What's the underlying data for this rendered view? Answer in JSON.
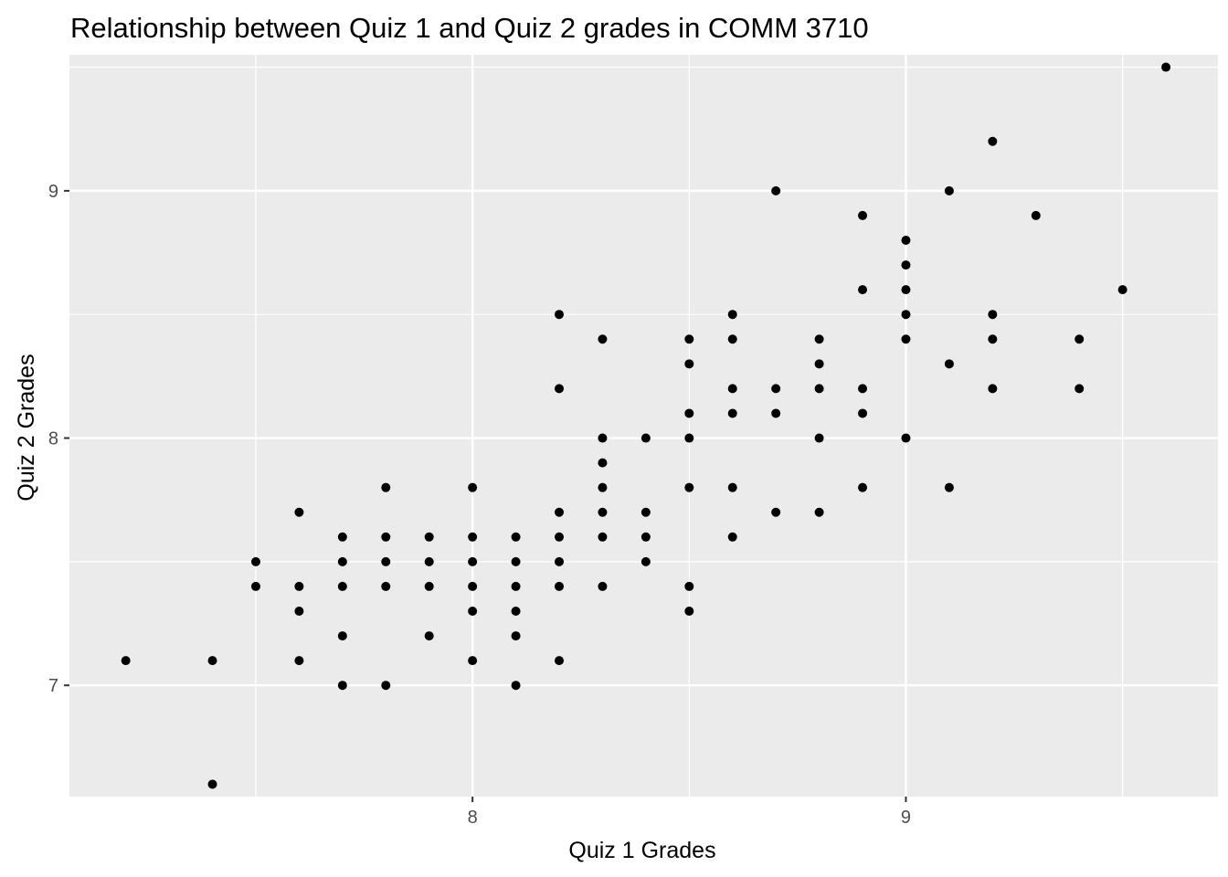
{
  "chart_data": {
    "type": "scatter",
    "title": "Relationship between Quiz 1 and Quiz 2 grades in COMM 3710",
    "xlabel": "Quiz 1 Grades",
    "ylabel": "Quiz 2 Grades",
    "xlim": [
      7.07,
      9.72
    ],
    "ylim": [
      6.55,
      9.55
    ],
    "x_ticks": [
      8,
      9
    ],
    "y_ticks": [
      7,
      8,
      9
    ],
    "x_tick_labels": [
      "8",
      "9"
    ],
    "y_tick_labels": [
      "7",
      "8",
      "9"
    ],
    "grid": true,
    "legend": "none",
    "colors": {
      "panel_background": "#ebebeb",
      "grid": "#ffffff",
      "point": "#000000",
      "tick": "#333333",
      "tick_label": "#4d4d4d"
    },
    "points": [
      [
        7.2,
        7.1
      ],
      [
        7.4,
        7.1
      ],
      [
        7.4,
        6.6
      ],
      [
        7.5,
        7.5
      ],
      [
        7.5,
        7.4
      ],
      [
        7.6,
        7.7
      ],
      [
        7.6,
        7.4
      ],
      [
        7.6,
        7.3
      ],
      [
        7.6,
        7.1
      ],
      [
        7.7,
        7.6
      ],
      [
        7.7,
        7.5
      ],
      [
        7.7,
        7.4
      ],
      [
        7.7,
        7.2
      ],
      [
        7.7,
        7.0
      ],
      [
        7.8,
        7.8
      ],
      [
        7.8,
        7.6
      ],
      [
        7.8,
        7.5
      ],
      [
        7.8,
        7.4
      ],
      [
        7.8,
        7.0
      ],
      [
        7.9,
        7.6
      ],
      [
        7.9,
        7.5
      ],
      [
        7.9,
        7.4
      ],
      [
        7.9,
        7.2
      ],
      [
        8.0,
        7.8
      ],
      [
        8.0,
        7.6
      ],
      [
        8.0,
        7.5
      ],
      [
        8.0,
        7.4
      ],
      [
        8.0,
        7.3
      ],
      [
        8.0,
        7.1
      ],
      [
        8.1,
        7.6
      ],
      [
        8.1,
        7.5
      ],
      [
        8.1,
        7.4
      ],
      [
        8.1,
        7.3
      ],
      [
        8.1,
        7.2
      ],
      [
        8.1,
        7.0
      ],
      [
        8.2,
        8.5
      ],
      [
        8.2,
        8.2
      ],
      [
        8.2,
        7.7
      ],
      [
        8.2,
        7.6
      ],
      [
        8.2,
        7.5
      ],
      [
        8.2,
        7.4
      ],
      [
        8.2,
        7.1
      ],
      [
        8.3,
        8.4
      ],
      [
        8.3,
        8.0
      ],
      [
        8.3,
        7.9
      ],
      [
        8.3,
        7.8
      ],
      [
        8.3,
        7.7
      ],
      [
        8.3,
        7.6
      ],
      [
        8.3,
        7.4
      ],
      [
        8.4,
        8.0
      ],
      [
        8.4,
        7.7
      ],
      [
        8.4,
        7.6
      ],
      [
        8.4,
        7.5
      ],
      [
        8.5,
        8.4
      ],
      [
        8.5,
        8.3
      ],
      [
        8.5,
        8.1
      ],
      [
        8.5,
        8.0
      ],
      [
        8.5,
        7.8
      ],
      [
        8.5,
        7.4
      ],
      [
        8.5,
        7.3
      ],
      [
        8.6,
        8.5
      ],
      [
        8.6,
        8.4
      ],
      [
        8.6,
        8.2
      ],
      [
        8.6,
        8.1
      ],
      [
        8.6,
        7.8
      ],
      [
        8.6,
        7.6
      ],
      [
        8.7,
        9.0
      ],
      [
        8.7,
        8.2
      ],
      [
        8.7,
        8.1
      ],
      [
        8.7,
        7.7
      ],
      [
        8.8,
        8.4
      ],
      [
        8.8,
        8.3
      ],
      [
        8.8,
        8.2
      ],
      [
        8.8,
        8.0
      ],
      [
        8.8,
        7.7
      ],
      [
        8.9,
        8.9
      ],
      [
        8.9,
        8.6
      ],
      [
        8.9,
        8.2
      ],
      [
        8.9,
        8.1
      ],
      [
        8.9,
        7.8
      ],
      [
        9.0,
        8.8
      ],
      [
        9.0,
        8.7
      ],
      [
        9.0,
        8.6
      ],
      [
        9.0,
        8.5
      ],
      [
        9.0,
        8.4
      ],
      [
        9.0,
        8.0
      ],
      [
        9.1,
        9.0
      ],
      [
        9.1,
        8.3
      ],
      [
        9.1,
        7.8
      ],
      [
        9.2,
        9.2
      ],
      [
        9.2,
        8.5
      ],
      [
        9.2,
        8.4
      ],
      [
        9.2,
        8.2
      ],
      [
        9.3,
        8.9
      ],
      [
        9.4,
        8.4
      ],
      [
        9.4,
        8.2
      ],
      [
        9.5,
        8.6
      ],
      [
        9.6,
        9.5
      ]
    ]
  }
}
